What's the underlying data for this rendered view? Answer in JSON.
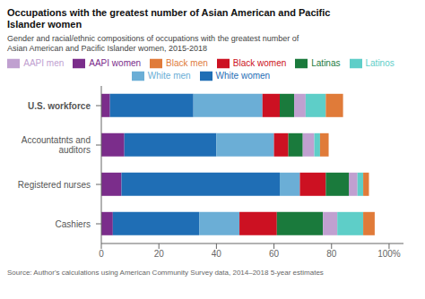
{
  "chart_data": {
    "type": "bar",
    "orientation": "horizontal",
    "stacked": true,
    "title": "Occupations with the greatest number of Asian American and Pacific\nIslander women",
    "subtitle": "Gender and racial/ethnic compositions of occupations with the greatest number of\nAsian American and Pacific Islander women, 2015-2018",
    "source": "Source: Author's calculations using American Community Survey data, 2014–2018 5-year estimates",
    "categories": [
      "U.S. workforce",
      "Accountatnts and\nauditors",
      "Registered nurses",
      "Cashiers"
    ],
    "series": [
      {
        "name": "AAPI women",
        "color": "#7b2d8b",
        "values": [
          3,
          8,
          7,
          4
        ]
      },
      {
        "name": "White women",
        "color": "#1f6eb5",
        "values": [
          29,
          32,
          55,
          30
        ]
      },
      {
        "name": "White men",
        "color": "#6baed6",
        "values": [
          24,
          20,
          7,
          14
        ]
      },
      {
        "name": "Black women",
        "color": "#cc1122",
        "values": [
          6,
          5,
          9,
          13
        ]
      },
      {
        "name": "Latinas",
        "color": "#1a7a3c",
        "values": [
          5,
          5,
          8,
          16
        ]
      },
      {
        "name": "AAPI men",
        "color": "#c0a0d0",
        "values": [
          4,
          4,
          3,
          5
        ]
      },
      {
        "name": "Latinos",
        "color": "#5ecec8",
        "values": [
          7,
          2,
          2,
          9
        ]
      },
      {
        "name": "Black men",
        "color": "#e07b39",
        "values": [
          6,
          3,
          2,
          4
        ]
      }
    ],
    "xlim": [
      0,
      105
    ],
    "xticks": [
      0,
      20,
      40,
      60,
      80,
      {
        "value": 100,
        "label": "100%"
      }
    ],
    "grid": false,
    "legend": "top"
  }
}
